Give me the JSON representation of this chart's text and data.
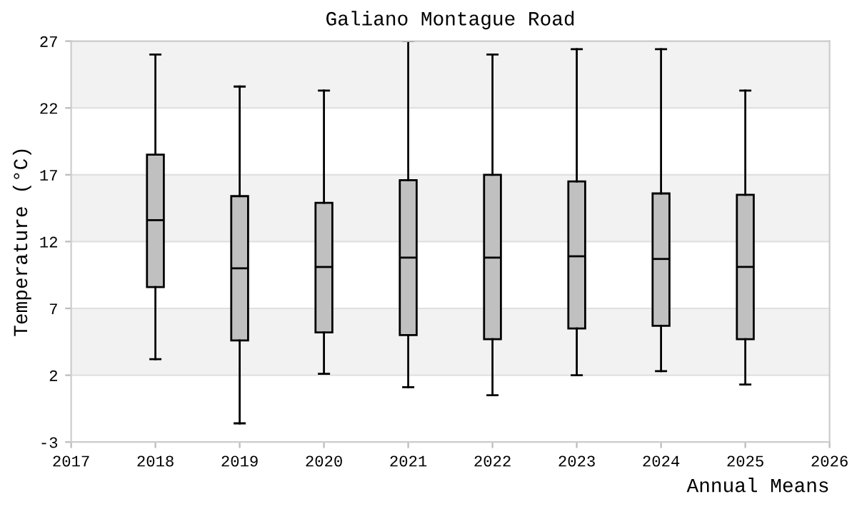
{
  "chart_data": {
    "type": "box",
    "title": "Galiano Montague Road",
    "xlabel": "Annual Means",
    "ylabel": "Temperature (°C)",
    "x": [
      2018,
      2019,
      2020,
      2021,
      2022,
      2023,
      2024,
      2025
    ],
    "color": "#c0c0c0",
    "boxes": [
      {
        "low": 3.2,
        "q1": 8.6,
        "median": 13.6,
        "q3": 18.5,
        "high": 26.0
      },
      {
        "low": -1.6,
        "q1": 4.6,
        "median": 10.0,
        "q3": 15.4,
        "high": 23.6
      },
      {
        "low": 2.1,
        "q1": 5.2,
        "median": 10.1,
        "q3": 14.9,
        "high": 23.3
      },
      {
        "low": 1.1,
        "q1": 5.0,
        "median": 10.8,
        "q3": 16.6,
        "high": 27.0
      },
      {
        "low": 0.5,
        "q1": 4.7,
        "median": 10.8,
        "q3": 17.0,
        "high": 26.0
      },
      {
        "low": 2.0,
        "q1": 5.5,
        "median": 10.9,
        "q3": 16.5,
        "high": 26.4
      },
      {
        "low": 2.3,
        "q1": 5.7,
        "median": 10.7,
        "q3": 15.6,
        "high": 26.4
      },
      {
        "low": 1.3,
        "q1": 4.7,
        "median": 10.1,
        "q3": 15.5,
        "high": 23.3
      }
    ],
    "xlim": [
      2017,
      2026
    ],
    "xticks": [
      2017,
      2018,
      2019,
      2020,
      2021,
      2022,
      2023,
      2024,
      2025,
      2026
    ],
    "ylim": [
      -3,
      27
    ],
    "yticks": [
      -3,
      2,
      7,
      12,
      17,
      22,
      27
    ],
    "bands": [
      {
        "axis": "y",
        "from": 2,
        "to": 7,
        "color": "#f2f2f2"
      },
      {
        "axis": "y",
        "from": 12,
        "to": 17,
        "color": "#f2f2f2"
      },
      {
        "axis": "y",
        "from": 22,
        "to": 27,
        "color": "#f2f2f2"
      }
    ],
    "grid": "y",
    "legend": false
  }
}
